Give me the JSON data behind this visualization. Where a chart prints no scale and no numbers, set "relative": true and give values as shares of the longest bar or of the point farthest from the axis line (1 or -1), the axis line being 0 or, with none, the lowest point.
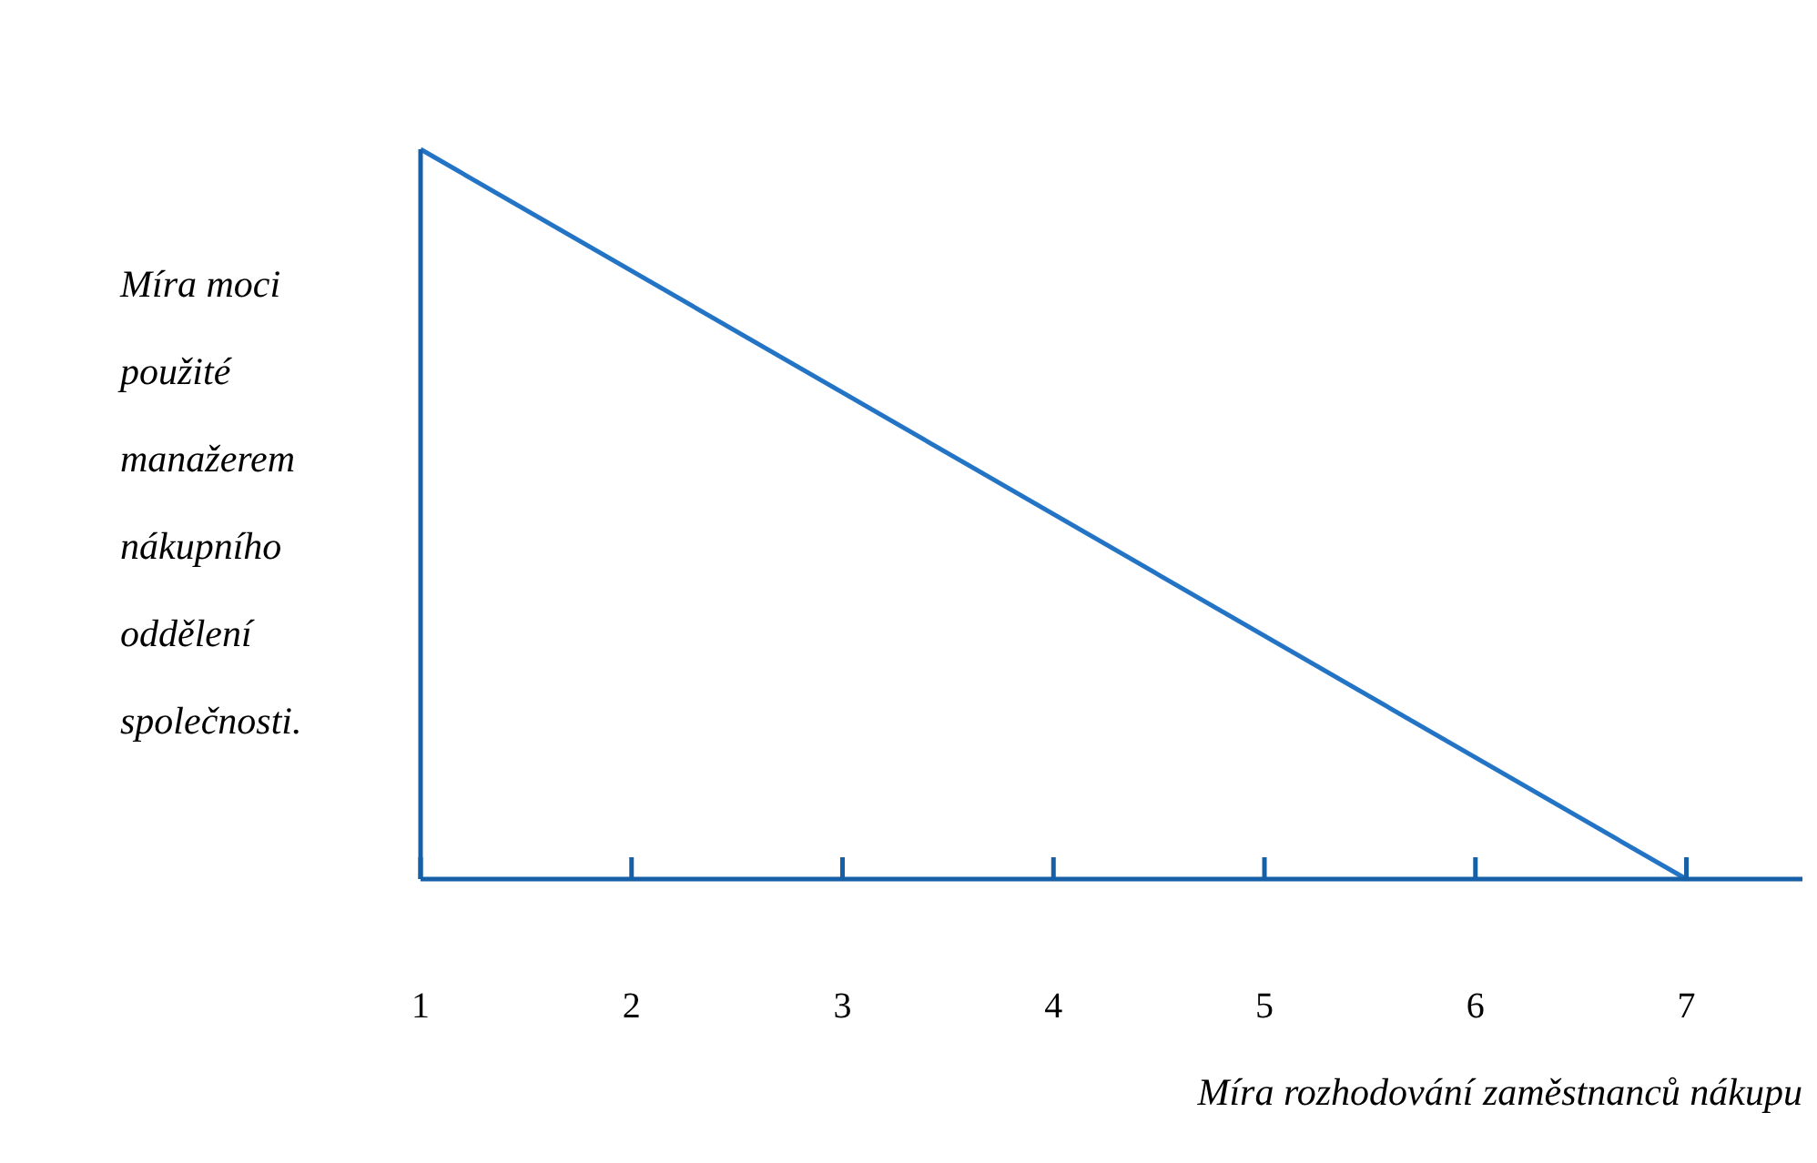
{
  "chart_data": {
    "type": "line",
    "xlabel": "Míra rozhodování zaměstnanců nákupu",
    "ylabel": "Míra moci použité manažerem nákupního oddělení společnosti.",
    "x": [
      1,
      7
    ],
    "xlim": [
      1,
      7.55
    ],
    "xticks": [
      1,
      2,
      3,
      4,
      5,
      6,
      7
    ],
    "series": [
      {
        "color": "#2474c6",
        "values": [
          1,
          0
        ]
      }
    ],
    "relative": true,
    "grid": false,
    "legend": false,
    "marker": "none",
    "line_style": "solid",
    "tick_labels": "x"
  }
}
